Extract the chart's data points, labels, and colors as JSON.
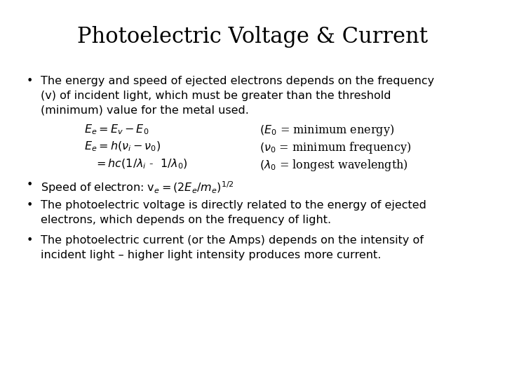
{
  "title": "Photoelectric Voltage & Current",
  "title_fontsize": 22,
  "body_fontsize": 11.5,
  "eq_fontsize": 11.5,
  "bg_color": "#ffffff",
  "text_color": "#000000",
  "bullet1_line1": "The energy and speed of ejected electrons depends on the frequency",
  "bullet1_line2": "(v) of incident light, which must be greater than the threshold",
  "bullet1_line3": "(minimum) value for the metal used.",
  "eq1_left": "$E_e = E_v - E_0$",
  "eq1_right": "$(E_0$ = minimum energy)",
  "eq2_left": "$E_e = h(\\nu_i - \\nu_0)$",
  "eq2_right": "$(\\nu_0$ = minimum frequency)",
  "eq3_left": "$= hc(1/\\lambda_i$ -  $1/\\lambda_0)$",
  "eq3_right": "$(\\lambda_0$ = longest wavelength)",
  "bullet2": "Speed of electron: $\\mathregular{v}_e = (2E_e/m_e)^{1/2}$",
  "bullet3_line1": "The photoelectric voltage is directly related to the energy of ejected",
  "bullet3_line2": "electrons, which depends on the frequency of light.",
  "bullet4_line1": "The photoelectric current (or the Amps) depends on the intensity of",
  "bullet4_line2": "incident light – higher light intensity produces more current."
}
